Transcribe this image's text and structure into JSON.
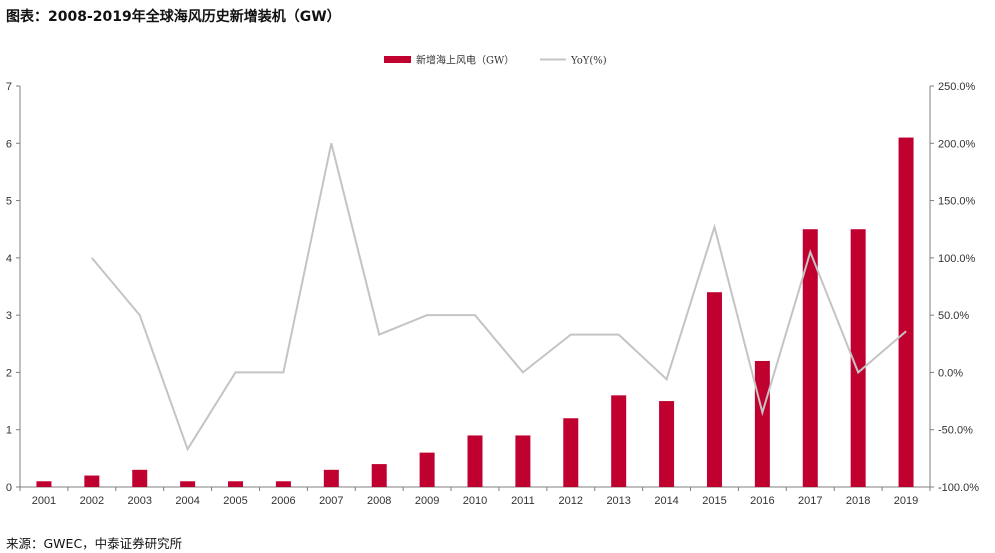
{
  "header": {
    "title": "图表：2008-2019年全球海风历史新增装机（GW）"
  },
  "footer": {
    "source": "来源：GWEC，中泰证券研究所"
  },
  "chart_data": {
    "type": "bar",
    "title": "图表：2008-2019年全球海风历史新增装机（GW）",
    "categories": [
      "2001",
      "2002",
      "2003",
      "2004",
      "2005",
      "2006",
      "2007",
      "2008",
      "2009",
      "2010",
      "2011",
      "2012",
      "2013",
      "2014",
      "2015",
      "2016",
      "2017",
      "2018",
      "2019"
    ],
    "series": [
      {
        "name": "新增海上风电（GW）",
        "type": "bar",
        "axis": "left",
        "color": "#c0002f",
        "values": [
          0.1,
          0.2,
          0.3,
          0.1,
          0.1,
          0.1,
          0.3,
          0.4,
          0.6,
          0.9,
          0.9,
          1.2,
          1.6,
          1.5,
          3.4,
          2.2,
          4.5,
          4.5,
          6.1
        ]
      },
      {
        "name": "YoY(%)",
        "type": "line",
        "axis": "right",
        "color": "#c4c4c4",
        "values": [
          null,
          100,
          50,
          -67,
          0,
          0,
          200,
          33,
          50,
          50,
          0,
          33,
          33,
          -6,
          127,
          -35,
          105,
          0,
          36
        ]
      }
    ],
    "y_left": {
      "lim": [
        0,
        7
      ],
      "ticks": [
        0,
        1,
        2,
        3,
        4,
        5,
        6,
        7
      ],
      "tick_labels": [
        "0",
        "1",
        "2",
        "3",
        "4",
        "5",
        "6",
        "7"
      ]
    },
    "y_right": {
      "lim": [
        -100,
        250
      ],
      "ticks": [
        -100,
        -50,
        0,
        50,
        100,
        150,
        200,
        250
      ],
      "tick_labels": [
        "-100.0%",
        "-50.0%",
        "0.0%",
        "50.0%",
        "100.0%",
        "150.0%",
        "200.0%",
        "250.0%"
      ]
    },
    "legend": {
      "position": "top-center",
      "entries": [
        "新增海上风电（GW）",
        "YoY(%)"
      ]
    },
    "grid": false
  }
}
